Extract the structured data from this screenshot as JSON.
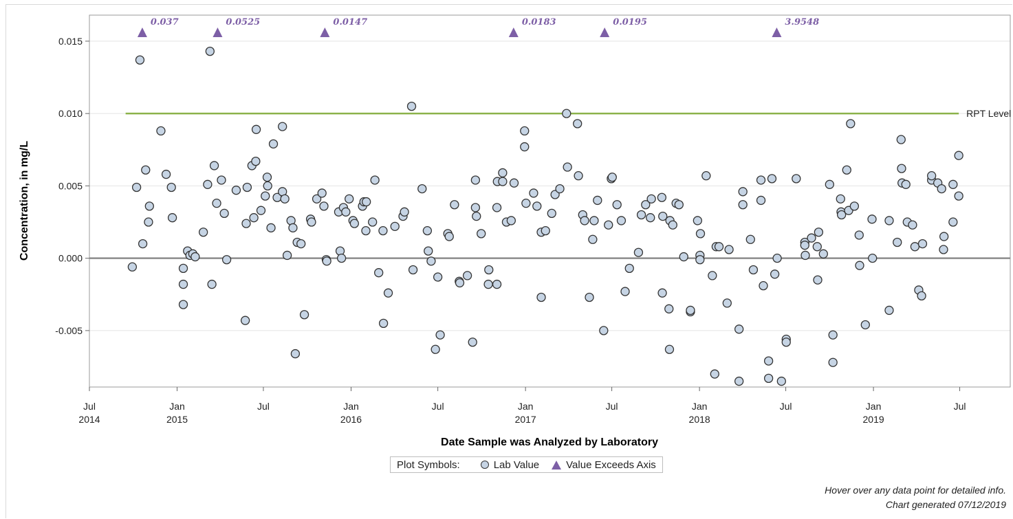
{
  "chart_data": {
    "type": "scatter",
    "title": "",
    "xlabel": "Date Sample was Analyzed by Laboratory",
    "ylabel": "Concentration, in mg/L",
    "xlim": [
      "2014-07-01",
      "2019-10-15"
    ],
    "ylim": [
      -0.0089,
      0.0168
    ],
    "grid": true,
    "x_ticks": [
      {
        "date": "2014-07-01",
        "label": "Jul",
        "year": "2014"
      },
      {
        "date": "2015-01-01",
        "label": "Jan",
        "year": "2015"
      },
      {
        "date": "2015-07-01",
        "label": "Jul",
        "year": ""
      },
      {
        "date": "2016-01-01",
        "label": "Jan",
        "year": "2016"
      },
      {
        "date": "2016-07-01",
        "label": "Jul",
        "year": ""
      },
      {
        "date": "2017-01-01",
        "label": "Jan",
        "year": "2017"
      },
      {
        "date": "2017-07-01",
        "label": "Jul",
        "year": ""
      },
      {
        "date": "2018-01-01",
        "label": "Jan",
        "year": "2018"
      },
      {
        "date": "2018-07-01",
        "label": "Jul",
        "year": ""
      },
      {
        "date": "2019-01-01",
        "label": "Jan",
        "year": "2019"
      },
      {
        "date": "2019-07-01",
        "label": "Jul",
        "year": ""
      }
    ],
    "y_ticks": [
      {
        "value": -0.005,
        "label": "-0.005"
      },
      {
        "value": 0.0,
        "label": "0.000"
      },
      {
        "value": 0.005,
        "label": "0.005"
      },
      {
        "value": 0.01,
        "label": "0.010"
      },
      {
        "value": 0.015,
        "label": "0.015"
      }
    ],
    "reference_line": {
      "label": "RPT Level",
      "value": 0.01,
      "x_start": "2014-09-15",
      "x_end": "2019-06-29",
      "color": "#8bb24a"
    },
    "zero_line_color": "#8c8c8c",
    "marker_fill": "#c6d4e4",
    "exceed_color": "#7d5fa6",
    "exceedances": [
      {
        "date": "2014-10-20",
        "label": "0.037"
      },
      {
        "date": "2015-03-27",
        "label": "0.0525"
      },
      {
        "date": "2015-11-07",
        "label": "0.0147"
      },
      {
        "date": "2016-12-07",
        "label": "0.0183"
      },
      {
        "date": "2017-06-16",
        "label": "0.0195"
      },
      {
        "date": "2018-06-12",
        "label": "3.9548"
      }
    ],
    "series": [
      {
        "name": "Lab Value",
        "points": [
          [
            "2014-09-29",
            -0.0006
          ],
          [
            "2014-10-08",
            0.0049
          ],
          [
            "2014-10-15",
            0.0137
          ],
          [
            "2014-10-21",
            0.001
          ],
          [
            "2014-10-27",
            0.0061
          ],
          [
            "2014-11-02",
            0.0025
          ],
          [
            "2014-11-04",
            0.0036
          ],
          [
            "2014-11-28",
            0.0088
          ],
          [
            "2014-12-09",
            0.0058
          ],
          [
            "2014-12-20",
            0.0049
          ],
          [
            "2014-12-22",
            0.0028
          ],
          [
            "2015-01-14",
            -0.0007
          ],
          [
            "2015-01-14",
            -0.0018
          ],
          [
            "2015-01-14",
            -0.0032
          ],
          [
            "2015-01-23",
            0.0005
          ],
          [
            "2015-01-28",
            0.0002
          ],
          [
            "2015-02-03",
            0.0003
          ],
          [
            "2015-02-08",
            0.0001
          ],
          [
            "2015-02-25",
            0.0018
          ],
          [
            "2015-03-06",
            0.0051
          ],
          [
            "2015-03-11",
            0.0143
          ],
          [
            "2015-03-15",
            -0.0018
          ],
          [
            "2015-03-20",
            0.0064
          ],
          [
            "2015-03-25",
            0.0038
          ],
          [
            "2015-04-04",
            0.0054
          ],
          [
            "2015-04-10",
            0.0031
          ],
          [
            "2015-04-15",
            -0.0001
          ],
          [
            "2015-05-05",
            0.0047
          ],
          [
            "2015-05-24",
            -0.0043
          ],
          [
            "2015-05-26",
            0.0024
          ],
          [
            "2015-05-28",
            0.0049
          ],
          [
            "2015-06-07",
            0.0064
          ],
          [
            "2015-06-11",
            0.0028
          ],
          [
            "2015-06-15",
            0.0067
          ],
          [
            "2015-06-16",
            0.0089
          ],
          [
            "2015-06-26",
            0.0033
          ],
          [
            "2015-07-05",
            0.0043
          ],
          [
            "2015-07-09",
            0.0056
          ],
          [
            "2015-07-10",
            0.005
          ],
          [
            "2015-07-17",
            0.0021
          ],
          [
            "2015-07-22",
            0.0079
          ],
          [
            "2015-07-30",
            0.0042
          ],
          [
            "2015-08-10",
            0.0091
          ],
          [
            "2015-08-10",
            0.0046
          ],
          [
            "2015-08-15",
            0.0041
          ],
          [
            "2015-08-20",
            0.0002
          ],
          [
            "2015-08-28",
            0.0026
          ],
          [
            "2015-09-01",
            0.0021
          ],
          [
            "2015-09-06",
            -0.0066
          ],
          [
            "2015-09-10",
            0.0011
          ],
          [
            "2015-09-18",
            0.001
          ],
          [
            "2015-09-25",
            -0.0039
          ],
          [
            "2015-10-08",
            0.0027
          ],
          [
            "2015-10-10",
            0.0025
          ],
          [
            "2015-10-21",
            0.0041
          ],
          [
            "2015-11-01",
            0.0045
          ],
          [
            "2015-11-05",
            0.0036
          ],
          [
            "2015-11-10",
            -0.0001
          ],
          [
            "2015-11-11",
            -0.0002
          ],
          [
            "2015-12-06",
            0.0032
          ],
          [
            "2015-12-09",
            0.0005
          ],
          [
            "2015-12-12",
            0.0
          ],
          [
            "2015-12-16",
            0.0035
          ],
          [
            "2015-12-21",
            0.0032
          ],
          [
            "2015-12-28",
            0.0041
          ],
          [
            "2016-01-05",
            0.0026
          ],
          [
            "2016-01-08",
            0.0024
          ],
          [
            "2016-01-25",
            0.0036
          ],
          [
            "2016-01-28",
            0.0039
          ],
          [
            "2016-02-01",
            0.0019
          ],
          [
            "2016-02-02",
            0.0039
          ],
          [
            "2016-02-15",
            0.0025
          ],
          [
            "2016-02-20",
            0.0054
          ],
          [
            "2016-02-28",
            -0.001
          ],
          [
            "2016-03-08",
            0.0019
          ],
          [
            "2016-03-09",
            -0.0045
          ],
          [
            "2016-03-19",
            -0.0024
          ],
          [
            "2016-04-02",
            0.0022
          ],
          [
            "2016-04-19",
            0.0029
          ],
          [
            "2016-04-22",
            0.0032
          ],
          [
            "2016-05-07",
            0.0105
          ],
          [
            "2016-05-10",
            -0.0008
          ],
          [
            "2016-05-29",
            0.0048
          ],
          [
            "2016-06-09",
            0.0019
          ],
          [
            "2016-06-11",
            0.0005
          ],
          [
            "2016-06-17",
            -0.0002
          ],
          [
            "2016-06-26",
            -0.0063
          ],
          [
            "2016-07-01",
            -0.0013
          ],
          [
            "2016-07-06",
            -0.0053
          ],
          [
            "2016-07-22",
            0.0017
          ],
          [
            "2016-07-25",
            0.0015
          ],
          [
            "2016-08-05",
            0.0037
          ],
          [
            "2016-08-15",
            -0.0016
          ],
          [
            "2016-08-16",
            -0.0017
          ],
          [
            "2016-09-01",
            -0.0012
          ],
          [
            "2016-09-12",
            -0.0058
          ],
          [
            "2016-09-18",
            0.0054
          ],
          [
            "2016-09-18",
            0.0035
          ],
          [
            "2016-09-20",
            0.0029
          ],
          [
            "2016-09-30",
            0.0017
          ],
          [
            "2016-10-15",
            -0.0018
          ],
          [
            "2016-10-16",
            -0.0008
          ],
          [
            "2016-11-02",
            0.0035
          ],
          [
            "2016-11-02",
            -0.0018
          ],
          [
            "2016-11-03",
            0.0053
          ],
          [
            "2016-11-14",
            0.0059
          ],
          [
            "2016-11-14",
            0.0053
          ],
          [
            "2016-11-22",
            0.0025
          ],
          [
            "2016-12-02",
            0.0026
          ],
          [
            "2016-12-08",
            0.0052
          ],
          [
            "2016-12-30",
            0.0088
          ],
          [
            "2016-12-30",
            0.0077
          ],
          [
            "2017-01-02",
            0.0038
          ],
          [
            "2017-01-18",
            0.0045
          ],
          [
            "2017-01-25",
            0.0036
          ],
          [
            "2017-02-03",
            0.0018
          ],
          [
            "2017-02-03",
            -0.0027
          ],
          [
            "2017-02-12",
            0.0019
          ],
          [
            "2017-02-25",
            0.0031
          ],
          [
            "2017-03-04",
            0.0044
          ],
          [
            "2017-03-14",
            0.0048
          ],
          [
            "2017-03-28",
            0.01
          ],
          [
            "2017-03-30",
            0.0063
          ],
          [
            "2017-04-20",
            0.0093
          ],
          [
            "2017-04-22",
            0.0057
          ],
          [
            "2017-05-01",
            0.003
          ],
          [
            "2017-05-05",
            0.0026
          ],
          [
            "2017-05-15",
            -0.0027
          ],
          [
            "2017-05-22",
            0.0013
          ],
          [
            "2017-05-25",
            0.0026
          ],
          [
            "2017-06-01",
            0.004
          ],
          [
            "2017-06-14",
            -0.005
          ],
          [
            "2017-06-24",
            0.0023
          ],
          [
            "2017-06-30",
            0.0055
          ],
          [
            "2017-07-02",
            0.0056
          ],
          [
            "2017-07-12",
            0.0037
          ],
          [
            "2017-07-21",
            0.0026
          ],
          [
            "2017-07-29",
            -0.0023
          ],
          [
            "2017-08-07",
            -0.0007
          ],
          [
            "2017-08-26",
            0.0004
          ],
          [
            "2017-09-01",
            0.003
          ],
          [
            "2017-09-10",
            0.0037
          ],
          [
            "2017-09-20",
            0.0028
          ],
          [
            "2017-09-22",
            0.0041
          ],
          [
            "2017-10-14",
            0.0042
          ],
          [
            "2017-10-15",
            -0.0024
          ],
          [
            "2017-10-16",
            0.0029
          ],
          [
            "2017-10-29",
            -0.0035
          ],
          [
            "2017-10-30",
            -0.0063
          ],
          [
            "2017-10-31",
            0.0026
          ],
          [
            "2017-11-06",
            0.0023
          ],
          [
            "2017-11-13",
            0.0038
          ],
          [
            "2017-11-19",
            0.0037
          ],
          [
            "2017-11-29",
            0.0001
          ],
          [
            "2017-12-13",
            -0.0037
          ],
          [
            "2017-12-13",
            -0.0036
          ],
          [
            "2017-12-28",
            0.0026
          ],
          [
            "2018-01-02",
            0.0002
          ],
          [
            "2018-01-02",
            -0.0001
          ],
          [
            "2018-01-03",
            0.0017
          ],
          [
            "2018-01-15",
            0.0057
          ],
          [
            "2018-01-28",
            -0.0012
          ],
          [
            "2018-02-02",
            -0.008
          ],
          [
            "2018-02-05",
            0.0008
          ],
          [
            "2018-02-11",
            0.0008
          ],
          [
            "2018-02-28",
            -0.0031
          ],
          [
            "2018-03-04",
            0.0006
          ],
          [
            "2018-03-25",
            -0.0049
          ],
          [
            "2018-03-25",
            -0.0085
          ],
          [
            "2018-04-02",
            0.0046
          ],
          [
            "2018-04-02",
            0.0037
          ],
          [
            "2018-04-18",
            0.0013
          ],
          [
            "2018-04-24",
            -0.0008
          ],
          [
            "2018-05-10",
            0.0054
          ],
          [
            "2018-05-10",
            0.004
          ],
          [
            "2018-05-15",
            -0.0019
          ],
          [
            "2018-05-26",
            -0.0071
          ],
          [
            "2018-05-26",
            -0.0083
          ],
          [
            "2018-06-02",
            0.0055
          ],
          [
            "2018-06-08",
            -0.0011
          ],
          [
            "2018-06-13",
            0.0
          ],
          [
            "2018-06-22",
            -0.0085
          ],
          [
            "2018-07-02",
            -0.0056
          ],
          [
            "2018-07-02",
            -0.0058
          ],
          [
            "2018-07-23",
            0.0055
          ],
          [
            "2018-08-10",
            0.0011
          ],
          [
            "2018-08-10",
            0.0009
          ],
          [
            "2018-08-11",
            0.0002
          ],
          [
            "2018-08-24",
            0.0014
          ],
          [
            "2018-09-05",
            0.0008
          ],
          [
            "2018-09-06",
            -0.0015
          ],
          [
            "2018-09-08",
            0.0018
          ],
          [
            "2018-09-18",
            0.0003
          ],
          [
            "2018-10-01",
            0.0051
          ],
          [
            "2018-10-08",
            -0.0053
          ],
          [
            "2018-10-08",
            -0.0072
          ],
          [
            "2018-10-24",
            0.0041
          ],
          [
            "2018-10-25",
            0.0032
          ],
          [
            "2018-10-26",
            0.003
          ],
          [
            "2018-11-06",
            0.0061
          ],
          [
            "2018-11-10",
            0.0033
          ],
          [
            "2018-11-14",
            0.0093
          ],
          [
            "2018-11-22",
            0.0036
          ],
          [
            "2018-12-02",
            0.0016
          ],
          [
            "2018-12-03",
            -0.0005
          ],
          [
            "2018-12-15",
            -0.0046
          ],
          [
            "2018-12-29",
            0.0027
          ],
          [
            "2018-12-30",
            0.0
          ],
          [
            "2019-02-03",
            0.0026
          ],
          [
            "2019-02-03",
            -0.0036
          ],
          [
            "2019-02-20",
            0.0011
          ],
          [
            "2019-02-28",
            0.0082
          ],
          [
            "2019-03-01",
            0.0062
          ],
          [
            "2019-03-02",
            0.0052
          ],
          [
            "2019-03-10",
            0.0051
          ],
          [
            "2019-03-13",
            0.0025
          ],
          [
            "2019-03-24",
            0.0023
          ],
          [
            "2019-03-29",
            0.0008
          ],
          [
            "2019-04-06",
            -0.0022
          ],
          [
            "2019-04-12",
            -0.0026
          ],
          [
            "2019-04-14",
            0.001
          ],
          [
            "2019-05-03",
            0.0054
          ],
          [
            "2019-05-03",
            0.0057
          ],
          [
            "2019-05-16",
            0.0052
          ],
          [
            "2019-05-24",
            0.0048
          ],
          [
            "2019-05-28",
            0.0006
          ],
          [
            "2019-05-29",
            0.0015
          ],
          [
            "2019-06-17",
            0.0051
          ],
          [
            "2019-06-17",
            0.0025
          ],
          [
            "2019-06-29",
            0.0071
          ],
          [
            "2019-06-29",
            0.0043
          ]
        ]
      },
      {
        "name": "Value Exceeds Axis",
        "points": []
      }
    ]
  },
  "legend": {
    "title": "Plot Symbols:",
    "items": [
      {
        "label": "Lab Value",
        "symbol": "circle"
      },
      {
        "label": "Value Exceeds Axis",
        "symbol": "triangle"
      }
    ]
  },
  "footnotes": {
    "hover": "Hover over any data point for detailed info.",
    "generated": "Chart generated 07/12/2019"
  }
}
